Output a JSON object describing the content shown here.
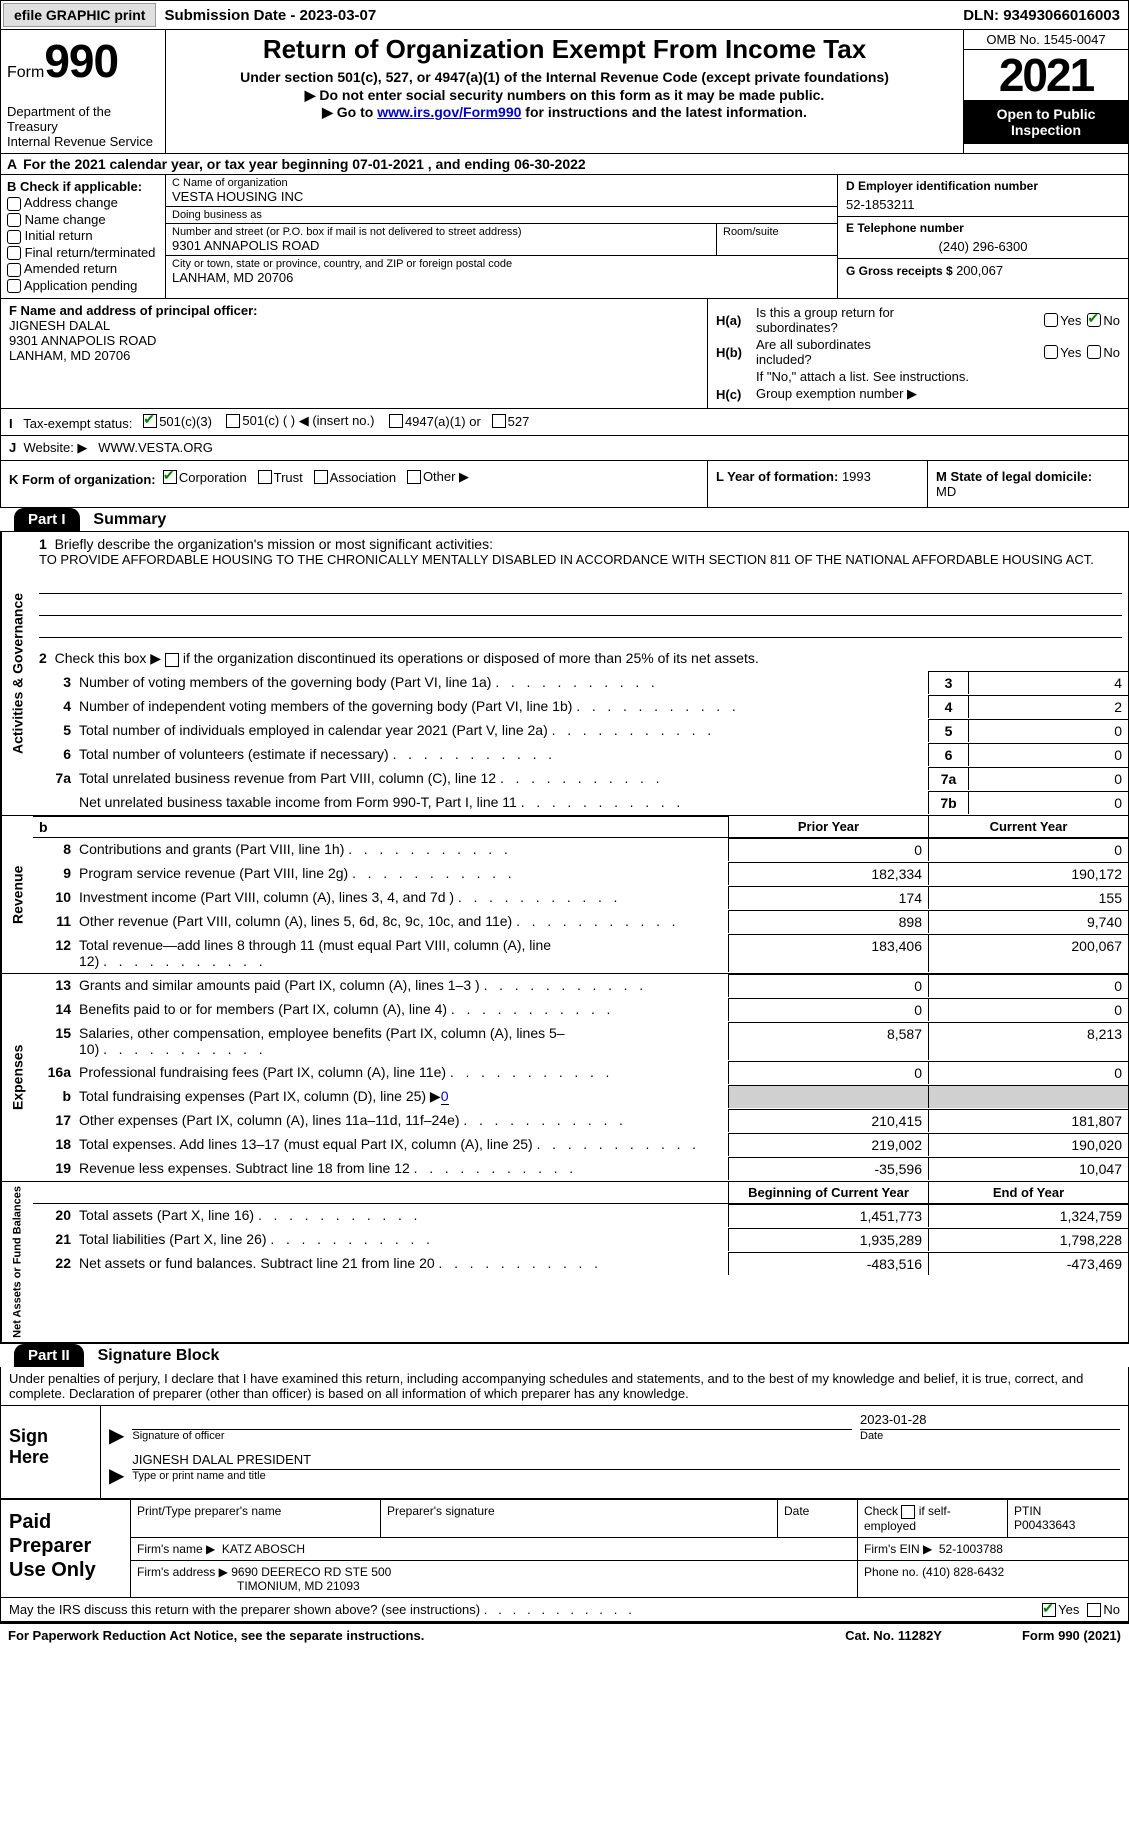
{
  "top": {
    "efile": "efile GRAPHIC print",
    "submission_date_label": "Submission Date - 2023-03-07",
    "dln": "DLN: 93493066016003"
  },
  "header": {
    "form_word": "Form",
    "form_num": "990",
    "dept": "Department of the Treasury",
    "service": "Internal Revenue Service",
    "title": "Return of Organization Exempt From Income Tax",
    "subtitle": "Under section 501(c), 527, or 4947(a)(1) of the Internal Revenue Code (except private foundations)",
    "ssn_note": "Do not enter social security numbers on this form as it may be made public.",
    "goto_pre": "Go to ",
    "goto_link": "www.irs.gov/Form990",
    "goto_post": " for instructions and the latest information.",
    "omb": "OMB No. 1545-0047",
    "year": "2021",
    "open": "Open to Public Inspection"
  },
  "calyear": {
    "a": "A",
    "text": "For the 2021 calendar year, or tax year beginning 07-01-2021    , and ending 06-30-2022"
  },
  "entity": {
    "b_label": "B Check if applicable:",
    "b_opts": [
      "Address change",
      "Name change",
      "Initial return",
      "Final return/terminated",
      "Amended return",
      "Application pending"
    ],
    "c_name_lbl": "C Name of organization",
    "c_name": "VESTA HOUSING INC",
    "dba_lbl": "Doing business as",
    "dba": "",
    "street_lbl": "Number and street (or P.O. box if mail is not delivered to street address)",
    "room_lbl": "Room/suite",
    "street": "9301 ANNAPOLIS ROAD",
    "city_lbl": "City or town, state or province, country, and ZIP or foreign postal code",
    "city": "LANHAM, MD  20706",
    "d_lbl": "D Employer identification number",
    "d_val": "52-1853211",
    "e_lbl": "E Telephone number",
    "e_val": "(240) 296-6300",
    "g_lbl": "G Gross receipts $ ",
    "g_val": "200,067"
  },
  "f": {
    "lbl": "F  Name and address of principal officer:",
    "name": "JIGNESH DALAL",
    "addr1": "9301 ANNAPOLIS ROAD",
    "addr2": "LANHAM, MD  20706"
  },
  "h": {
    "a_lbl": "H(a)",
    "a_txt1": "Is this a group return for",
    "a_txt2": "subordinates?",
    "b_lbl": "H(b)",
    "b_txt1": "Are all subordinates",
    "b_txt2": "included?",
    "b_note": "If \"No,\" attach a list. See instructions.",
    "c_lbl": "H(c)",
    "c_txt": "Group exemption number ▶",
    "yes": "Yes",
    "no": "No"
  },
  "i": {
    "lbl": "I",
    "text": "Tax-exempt status:",
    "o1": "501(c)(3)",
    "o2": "501(c) (   ) ◀ (insert no.)",
    "o3": "4947(a)(1) or",
    "o4": "527"
  },
  "j": {
    "lbl": "J",
    "text": "Website: ▶",
    "val": "WWW.VESTA.ORG"
  },
  "k": {
    "lbl": "K Form of organization:",
    "o1": "Corporation",
    "o2": "Trust",
    "o3": "Association",
    "o4": "Other ▶"
  },
  "l": {
    "lbl": "L Year of formation: ",
    "val": "1993"
  },
  "m": {
    "lbl": "M State of legal domicile:",
    "val": "MD"
  },
  "part1": {
    "tab": "Part I",
    "title": "Summary",
    "vtab_ag": "Activities & Governance",
    "vtab_rev": "Revenue",
    "vtab_exp": "Expenses",
    "vtab_na": "Net Assets or Fund Balances",
    "line1_lbl": "Briefly describe the organization's mission or most significant activities:",
    "line1_val": "TO PROVIDE AFFORDABLE HOUSING TO THE CHRONICALLY MENTALLY DISABLED IN ACCORDANCE WITH SECTION 811 OF THE NATIONAL AFFORDABLE HOUSING ACT.",
    "line2": "Check this box ▶       if the organization discontinued its operations or disposed of more than 25% of its net assets.",
    "lines_ag": [
      {
        "n": "3",
        "d": "Number of voting members of the governing body (Part VI, line 1a)",
        "b": "3",
        "v": "4"
      },
      {
        "n": "4",
        "d": "Number of independent voting members of the governing body (Part VI, line 1b)",
        "b": "4",
        "v": "2"
      },
      {
        "n": "5",
        "d": "Total number of individuals employed in calendar year 2021 (Part V, line 2a)",
        "b": "5",
        "v": "0"
      },
      {
        "n": "6",
        "d": "Total number of volunteers (estimate if necessary)",
        "b": "6",
        "v": "0"
      },
      {
        "n": "7a",
        "d": "Total unrelated business revenue from Part VIII, column (C), line 12",
        "b": "7a",
        "v": "0"
      },
      {
        "n": "",
        "d": "Net unrelated business taxable income from Form 990-T, Part I, line 11",
        "b": "7b",
        "v": "0"
      }
    ],
    "prior_year": "Prior Year",
    "current_year": "Current Year",
    "lines_rev": [
      {
        "n": "8",
        "d": "Contributions and grants (Part VIII, line 1h)",
        "py": "0",
        "cy": "0"
      },
      {
        "n": "9",
        "d": "Program service revenue (Part VIII, line 2g)",
        "py": "182,334",
        "cy": "190,172"
      },
      {
        "n": "10",
        "d": "Investment income (Part VIII, column (A), lines 3, 4, and 7d )",
        "py": "174",
        "cy": "155"
      },
      {
        "n": "11",
        "d": "Other revenue (Part VIII, column (A), lines 5, 6d, 8c, 9c, 10c, and 11e)",
        "py": "898",
        "cy": "9,740"
      },
      {
        "n": "12",
        "d": "Total revenue—add lines 8 through 11 (must equal Part VIII, column (A), line 12)",
        "py": "183,406",
        "cy": "200,067"
      }
    ],
    "lines_exp": [
      {
        "n": "13",
        "d": "Grants and similar amounts paid (Part IX, column (A), lines 1–3 )",
        "py": "0",
        "cy": "0"
      },
      {
        "n": "14",
        "d": "Benefits paid to or for members (Part IX, column (A), line 4)",
        "py": "0",
        "cy": "0"
      },
      {
        "n": "15",
        "d": "Salaries, other compensation, employee benefits (Part IX, column (A), lines 5–10)",
        "py": "8,587",
        "cy": "8,213"
      },
      {
        "n": "16a",
        "d": "Professional fundraising fees (Part IX, column (A), line 11e)",
        "py": "0",
        "cy": "0"
      },
      {
        "n": "b",
        "d": "Total fundraising expenses (Part IX, column (D), line 25) ▶",
        "py": "",
        "cy": "",
        "shade": true,
        "sub": "0"
      },
      {
        "n": "17",
        "d": "Other expenses (Part IX, column (A), lines 11a–11d, 11f–24e)",
        "py": "210,415",
        "cy": "181,807"
      },
      {
        "n": "18",
        "d": "Total expenses. Add lines 13–17 (must equal Part IX, column (A), line 25)",
        "py": "219,002",
        "cy": "190,020"
      },
      {
        "n": "19",
        "d": "Revenue less expenses. Subtract line 18 from line 12",
        "py": "-35,596",
        "cy": "10,047"
      }
    ],
    "boy": "Beginning of Current Year",
    "eoy": "End of Year",
    "lines_na": [
      {
        "n": "20",
        "d": "Total assets (Part X, line 16)",
        "py": "1,451,773",
        "cy": "1,324,759"
      },
      {
        "n": "21",
        "d": "Total liabilities (Part X, line 26)",
        "py": "1,935,289",
        "cy": "1,798,228"
      },
      {
        "n": "22",
        "d": "Net assets or fund balances. Subtract line 21 from line 20",
        "py": "-483,516",
        "cy": "-473,469"
      }
    ]
  },
  "part2": {
    "tab": "Part II",
    "title": "Signature Block",
    "decl": "Under penalties of perjury, I declare that I have examined this return, including accompanying schedules and statements, and to the best of my knowledge and belief, it is true, correct, and complete. Declaration of preparer (other than officer) is based on all information of which preparer has any knowledge.",
    "sign_here": "Sign Here",
    "sig_officer_lbl": "Signature of officer",
    "sig_date": "2023-01-28",
    "date_lbl": "Date",
    "officer_name": "JIGNESH DALAL PRESIDENT",
    "type_name_lbl": "Type or print name and title",
    "paid": "Paid Preparer Use Only",
    "pt_name_lbl": "Print/Type preparer's name",
    "pt_sig_lbl": "Preparer's signature",
    "pt_date_lbl": "Date",
    "pt_check_lbl": "Check        if self-employed",
    "ptin_lbl": "PTIN",
    "ptin": "P00433643",
    "firm_name_lbl": "Firm's name    ▶",
    "firm_name": "KATZ ABOSCH",
    "firm_ein_lbl": "Firm's EIN ▶",
    "firm_ein": "52-1003788",
    "firm_addr_lbl": "Firm's address ▶",
    "firm_addr1": "9690 DEERECO RD STE 500",
    "firm_addr2": "TIMONIUM, MD  21093",
    "phone_lbl": "Phone no. ",
    "phone": "(410) 828-6432",
    "discuss": "May the IRS discuss this return with the preparer shown above? (see instructions)",
    "yes": "Yes",
    "no": "No"
  },
  "footer": {
    "pra": "For Paperwork Reduction Act Notice, see the separate instructions.",
    "cat": "Cat. No. 11282Y",
    "form": "Form 990 (2021)"
  }
}
